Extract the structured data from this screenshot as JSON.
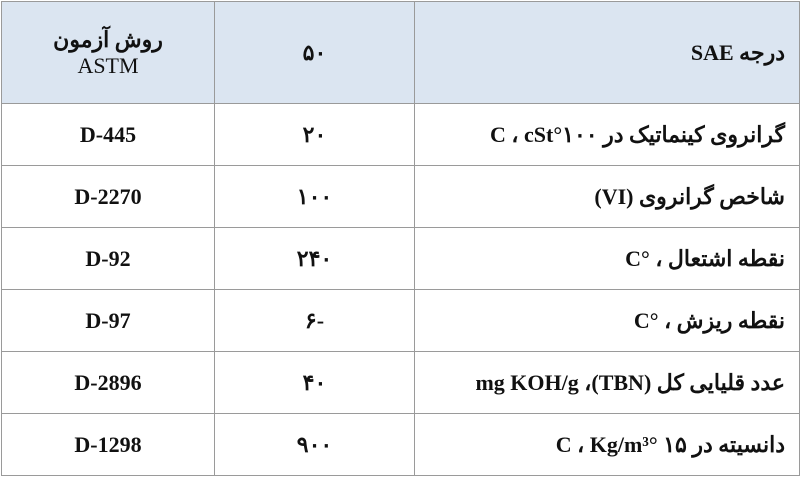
{
  "table": {
    "header": {
      "property": "درجه SAE",
      "grade": "۵۰",
      "method": [
        "روش آزمون",
        "ASTM"
      ]
    },
    "rows": [
      [
        "گرانروی کینماتیک در ۱۰۰°C ، cSt",
        "۲۰",
        "D-445"
      ],
      [
        "شاخص گرانروی (VI)",
        "۱۰۰",
        "D-2270"
      ],
      [
        "نقطه اشتعال ، °C",
        "۲۴۰",
        "D-92"
      ],
      [
        "نقطه ریزش ، °C",
        "-۶",
        "D-97"
      ],
      [
        "عدد قلیایی کل (TBN)، mg KOH/g",
        "۴۰",
        "D-2896"
      ],
      [
        "دانسیته در ۱۵ °C ، Kg/m³",
        "۹۰۰",
        "D-1298"
      ]
    ]
  }
}
